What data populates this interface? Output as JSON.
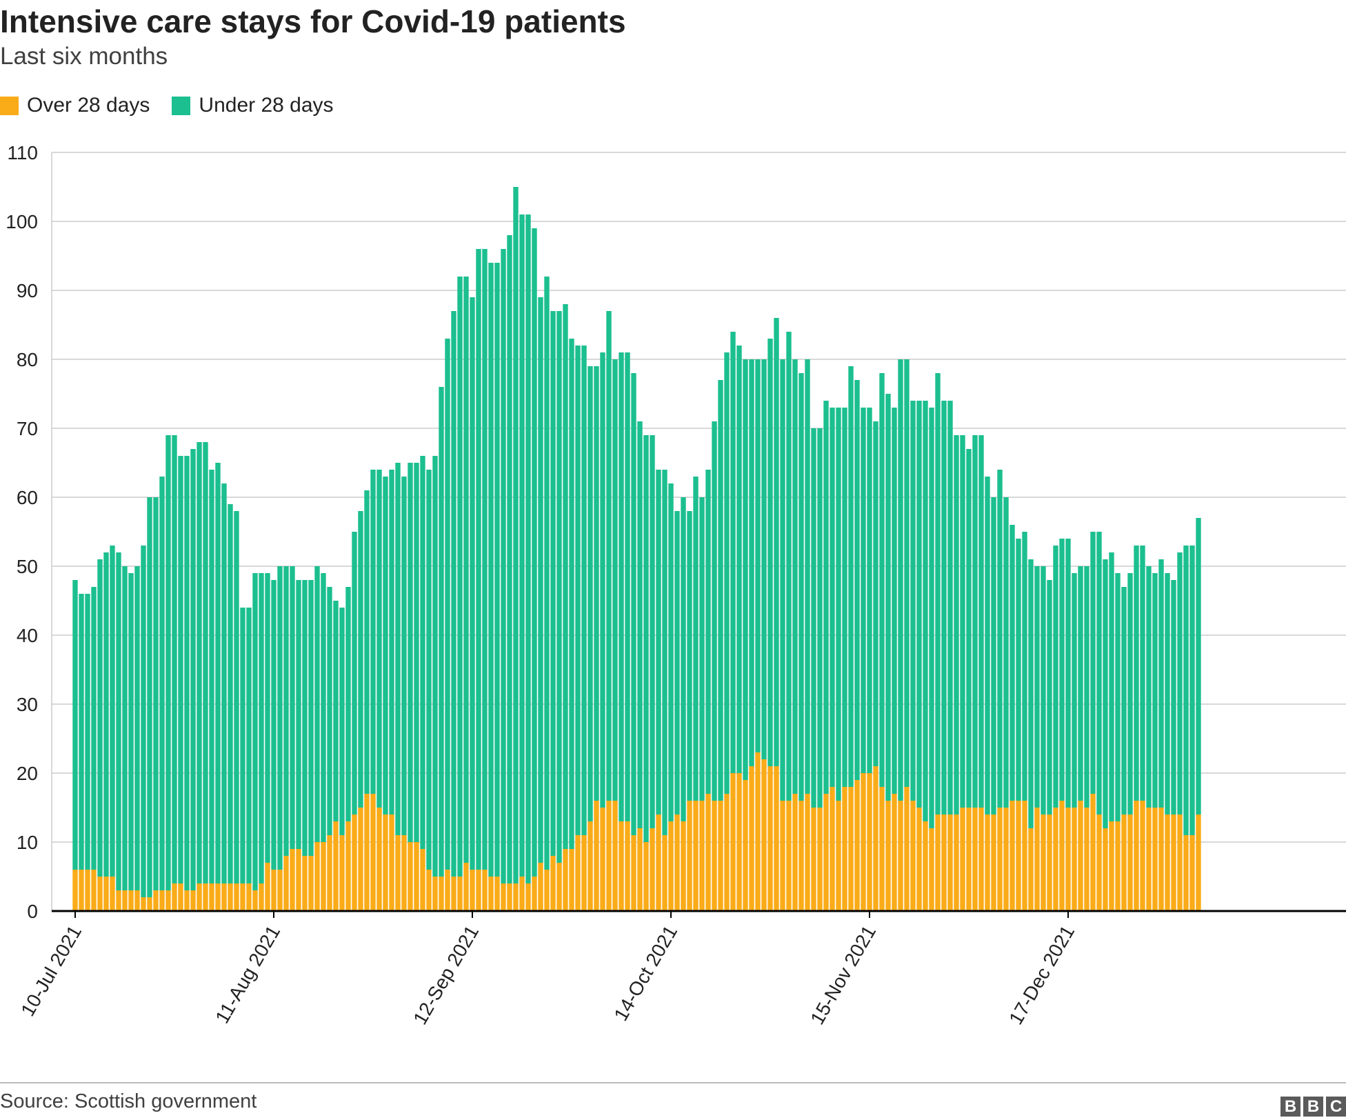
{
  "colors": {
    "over": "#faab18",
    "under": "#1cbf8f",
    "grid": "#cccccc",
    "axis": "#000000",
    "text": "#222222"
  },
  "footer": {
    "source": "Source: Scottish government",
    "logo": [
      "B",
      "B",
      "C"
    ]
  },
  "chart_data": {
    "type": "bar",
    "stacked": true,
    "title": "Intensive care stays for Covid-19 patients",
    "subtitle": "Last six months",
    "legend": [
      "Over 28 days",
      "Under 28 days"
    ],
    "legend_position": "top-left",
    "ylim": [
      0,
      110
    ],
    "yticks": [
      0,
      10,
      20,
      30,
      40,
      50,
      60,
      70,
      80,
      90,
      100,
      110
    ],
    "grid": true,
    "x_tick_labels": [
      {
        "label": "10-Jul 2021",
        "index": 0
      },
      {
        "label": "11-Aug 2021",
        "index": 32
      },
      {
        "label": "12-Sep 2021",
        "index": 64
      },
      {
        "label": "14-Oct 2021",
        "index": 96
      },
      {
        "label": "15-Nov 2021",
        "index": 128
      },
      {
        "label": "17-Dec 2021",
        "index": 160
      }
    ],
    "series": [
      {
        "name": "Over 28 days",
        "values": [
          6,
          6,
          6,
          6,
          5,
          5,
          5,
          3,
          3,
          3,
          3,
          2,
          2,
          3,
          3,
          3,
          4,
          4,
          3,
          3,
          4,
          4,
          4,
          4,
          4,
          4,
          4,
          4,
          4,
          3,
          4,
          7,
          6,
          6,
          8,
          9,
          9,
          8,
          8,
          10,
          10,
          11,
          13,
          11,
          13,
          14,
          15,
          17,
          17,
          15,
          14,
          14,
          11,
          11,
          10,
          10,
          9,
          6,
          5,
          5,
          6,
          5,
          5,
          7,
          6,
          6,
          6,
          5,
          5,
          4,
          4,
          4,
          5,
          4,
          5,
          7,
          6,
          8,
          7,
          9,
          9,
          11,
          11,
          13,
          16,
          15,
          16,
          16,
          13,
          13,
          11,
          12,
          10,
          12,
          14,
          11,
          13,
          14,
          13,
          16,
          16,
          16,
          17,
          16,
          16,
          17,
          20,
          20,
          19,
          21,
          23,
          22,
          21,
          21,
          16,
          16,
          17,
          16,
          17,
          15,
          15,
          17,
          18,
          16,
          18,
          18,
          19,
          20,
          20,
          21,
          18,
          16,
          17,
          16,
          18,
          16,
          15,
          13,
          12,
          14,
          14,
          14,
          14,
          15,
          15,
          15,
          15,
          14,
          14,
          15,
          15,
          16,
          16,
          16,
          12,
          15,
          14,
          14,
          15,
          16,
          15,
          15,
          16,
          15,
          17,
          14,
          12,
          13,
          13,
          14,
          14,
          16,
          16,
          15,
          15,
          15,
          14,
          14,
          14,
          11,
          11,
          14
        ]
      },
      {
        "name": "Under 28 days",
        "values": [
          42,
          40,
          40,
          41,
          46,
          47,
          48,
          49,
          47,
          46,
          47,
          51,
          58,
          57,
          60,
          66,
          65,
          62,
          63,
          64,
          64,
          64,
          60,
          61,
          58,
          55,
          54,
          40,
          40,
          46,
          45,
          42,
          42,
          44,
          42,
          41,
          39,
          40,
          40,
          40,
          39,
          36,
          32,
          33,
          34,
          41,
          43,
          44,
          47,
          49,
          49,
          50,
          54,
          52,
          55,
          55,
          57,
          58,
          61,
          71,
          77,
          82,
          87,
          85,
          83,
          90,
          90,
          89,
          89,
          92,
          94,
          101,
          96,
          97,
          94,
          82,
          86,
          79,
          80,
          79,
          74,
          71,
          71,
          66,
          63,
          66,
          71,
          64,
          68,
          68,
          67,
          59,
          59,
          57,
          50,
          53,
          49,
          44,
          47,
          42,
          47,
          44,
          47,
          55,
          61,
          64,
          64,
          62,
          61,
          59,
          57,
          58,
          62,
          65,
          64,
          68,
          63,
          62,
          63,
          55,
          55,
          57,
          55,
          57,
          55,
          61,
          58,
          53,
          53,
          50,
          60,
          59,
          56,
          64,
          62,
          58,
          59,
          61,
          61,
          64,
          60,
          60,
          55,
          54,
          52,
          54,
          54,
          49,
          46,
          49,
          45,
          40,
          38,
          39,
          39,
          35,
          36,
          34,
          38,
          38,
          39,
          34,
          34,
          35,
          38,
          41,
          39,
          39,
          36,
          33,
          35,
          37,
          37,
          35,
          34,
          36,
          35,
          34,
          38,
          42,
          42,
          43
        ]
      }
    ]
  }
}
